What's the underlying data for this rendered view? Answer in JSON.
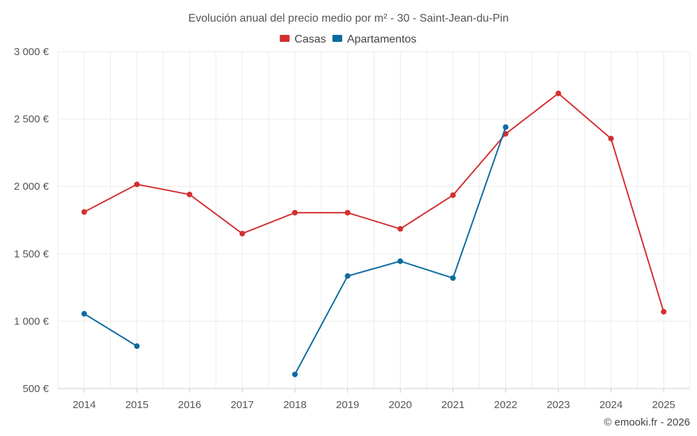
{
  "chart_data": {
    "type": "line",
    "title": "Evolución anual del precio medio por m² - 30 - Saint-Jean-du-Pin",
    "xlabel": "",
    "ylabel": "",
    "categories": [
      "2014",
      "2015",
      "2016",
      "2017",
      "2018",
      "2019",
      "2020",
      "2021",
      "2022",
      "2023",
      "2024",
      "2025"
    ],
    "ylim": [
      500,
      3000
    ],
    "yticks": [
      500,
      1000,
      1500,
      2000,
      2500,
      3000
    ],
    "ytick_labels": [
      "500 €",
      "1 000 €",
      "1 500 €",
      "2 000 €",
      "2 500 €",
      "3 000 €"
    ],
    "grid": true,
    "legend_position": "top-center",
    "series": [
      {
        "name": "Casas",
        "color": "#d32f2f",
        "values": [
          1810,
          2015,
          1940,
          1650,
          1805,
          1805,
          1685,
          1935,
          2390,
          2690,
          2355,
          1070
        ]
      },
      {
        "name": "Apartamentos",
        "color": "#0d6aa0",
        "values": [
          1055,
          815,
          null,
          null,
          605,
          1335,
          1445,
          1320,
          2440,
          null,
          null,
          null
        ]
      }
    ]
  },
  "credit": "© emooki.fr - 2026"
}
